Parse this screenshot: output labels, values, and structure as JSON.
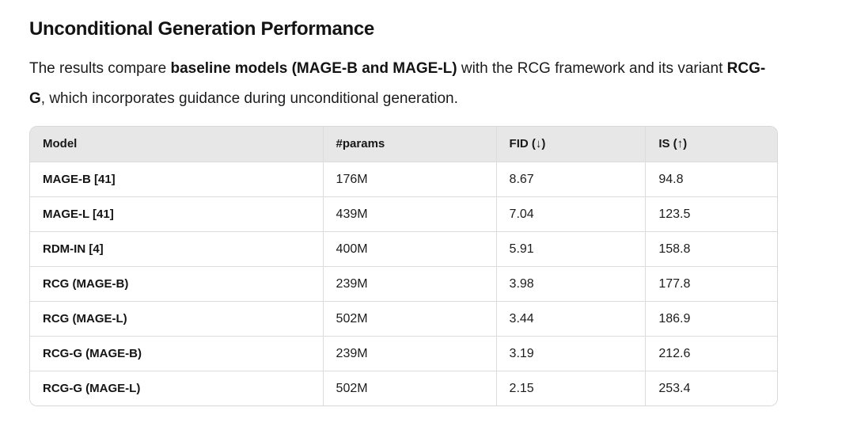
{
  "heading": "Unconditional Generation Performance",
  "intro": {
    "text_1": "The results compare ",
    "bold_1": "baseline models (MAGE-B and MAGE-L)",
    "text_2": " with the RCG framework and its variant ",
    "bold_2": "RCG-G",
    "text_3": ", which incorporates guidance during unconditional generation."
  },
  "table": {
    "columns": [
      "Model",
      "#params",
      "FID (↓)",
      "IS (↑)"
    ],
    "rows": [
      {
        "model": "MAGE-B [41]",
        "params": "176M",
        "fid": "8.67",
        "is_score": "94.8"
      },
      {
        "model": "MAGE-L [41]",
        "params": "439M",
        "fid": "7.04",
        "is_score": "123.5"
      },
      {
        "model": "RDM-IN [4]",
        "params": "400M",
        "fid": "5.91",
        "is_score": "158.8"
      },
      {
        "model": "RCG (MAGE-B)",
        "params": "239M",
        "fid": "3.98",
        "is_score": "177.8"
      },
      {
        "model": "RCG (MAGE-L)",
        "params": "502M",
        "fid": "3.44",
        "is_score": "186.9"
      },
      {
        "model": "RCG-G (MAGE-B)",
        "params": "239M",
        "fid": "3.19",
        "is_score": "212.6"
      },
      {
        "model": "RCG-G (MAGE-L)",
        "params": "502M",
        "fid": "2.15",
        "is_score": "253.4"
      }
    ]
  },
  "colors": {
    "header_bg": "#e7e7e8",
    "table_border": "#d8d8d8",
    "row_divider": "#dcdcdc",
    "text": "#1c1c1e"
  }
}
